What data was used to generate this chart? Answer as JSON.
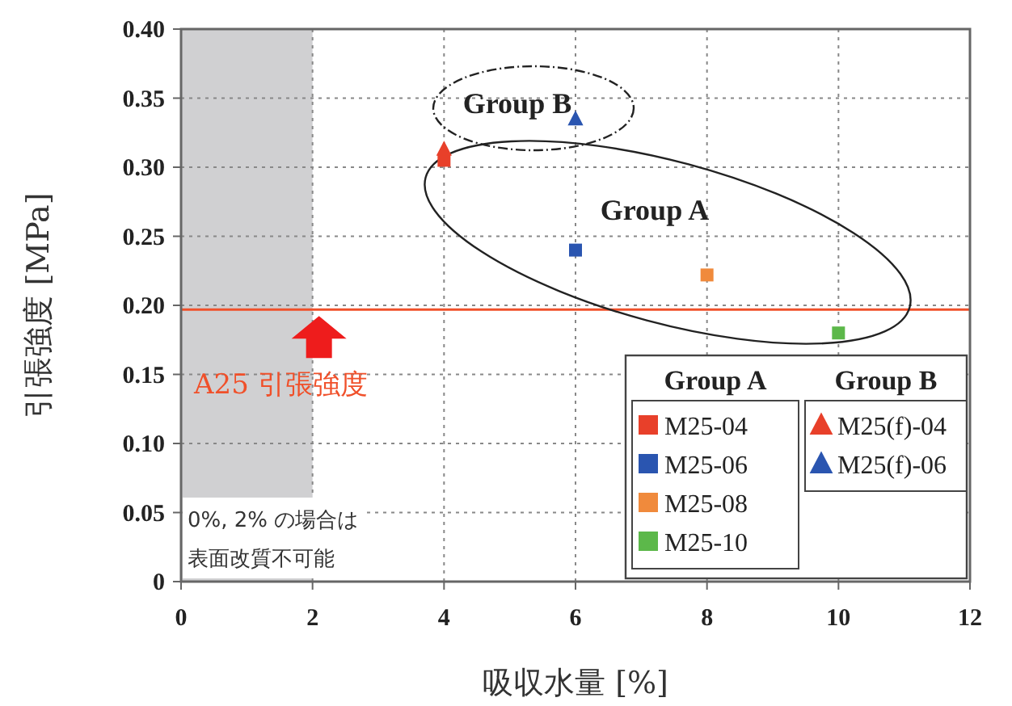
{
  "chart_data": {
    "type": "scatter",
    "xlabel": "吸収水量 [%]",
    "ylabel": "引張強度 [MPa]",
    "xlim": [
      0,
      12
    ],
    "xticks": [
      0,
      2,
      4,
      6,
      8,
      10,
      12
    ],
    "ylim": [
      0,
      0.4
    ],
    "yticks": [
      0,
      0.05,
      {
        "value": 0.1,
        "label": "0.10"
      },
      0.15,
      {
        "value": 0.2,
        "label": "0.20"
      },
      0.25,
      {
        "value": 0.3,
        "label": "0.30"
      },
      0.35,
      {
        "value": 0.4,
        "label": "0.40"
      }
    ],
    "grid": true,
    "legend": "bottom right",
    "series": [
      {
        "name": "M25-04",
        "color": "#e8402a",
        "marker": "square",
        "x": [
          4
        ],
        "values": [
          0.305
        ]
      },
      {
        "name": "M25-06",
        "color": "#2a55b0",
        "marker": "square",
        "x": [
          6
        ],
        "values": [
          0.24
        ]
      },
      {
        "name": "M25-08",
        "color": "#f08a3c",
        "marker": "square",
        "x": [
          8
        ],
        "values": [
          0.222
        ]
      },
      {
        "name": "M25-10",
        "color": "#5cb84a",
        "marker": "square",
        "x": [
          10
        ],
        "values": [
          0.18
        ]
      },
      {
        "name": "M25(f)-04",
        "color": "#e8402a",
        "marker": "triangle",
        "x": [
          4
        ],
        "values": [
          0.313
        ]
      },
      {
        "name": "M25(f)-06",
        "color": "#2a55b0",
        "marker": "triangle",
        "x": [
          6
        ],
        "values": [
          0.335
        ]
      }
    ],
    "ref_lines": [
      {
        "axis": "y",
        "value": 0.197,
        "label": "A25 引張強度",
        "color": "#f0502a"
      }
    ],
    "bands": [
      {
        "axis": "x",
        "from": 0,
        "to": 2,
        "label": "0%, 2% の場合は表面改質不可能",
        "color": "#d0d0d2"
      }
    ],
    "annotations": [
      "Group A",
      "Group B"
    ]
  }
}
